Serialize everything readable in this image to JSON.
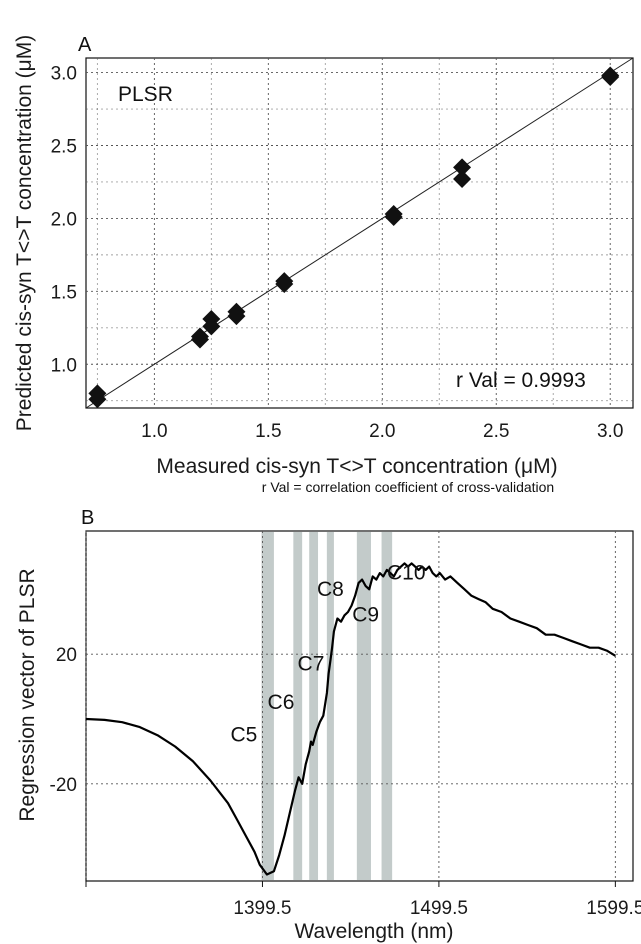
{
  "chart_data": [
    {
      "panel": "A",
      "type": "scatter",
      "annotation": "PLSR",
      "stat_text": "r Val = 0.9993",
      "xlabel": "Measured cis-syn T<>T concentration (μM)",
      "ylabel": "Predicted cis-syn T<>T concentration (μM)",
      "note": "r Val = correlation coefficient of cross-validation",
      "xlim": [
        0.7,
        3.1
      ],
      "ylim": [
        0.7,
        3.1
      ],
      "xticks": [
        "1.0",
        "1.5",
        "2.0",
        "2.5",
        "3.0"
      ],
      "yticks": [
        "1.0",
        "1.5",
        "2.0",
        "2.5",
        "3.0"
      ],
      "grid": true,
      "fit_line": [
        [
          0.7,
          0.7
        ],
        [
          3.1,
          3.1
        ]
      ],
      "points": [
        {
          "x": 0.75,
          "y": 0.76
        },
        {
          "x": 0.75,
          "y": 0.8
        },
        {
          "x": 1.2,
          "y": 1.17
        },
        {
          "x": 1.2,
          "y": 1.19
        },
        {
          "x": 1.25,
          "y": 1.26
        },
        {
          "x": 1.25,
          "y": 1.31
        },
        {
          "x": 1.36,
          "y": 1.33
        },
        {
          "x": 1.36,
          "y": 1.36
        },
        {
          "x": 1.57,
          "y": 1.55
        },
        {
          "x": 1.57,
          "y": 1.57
        },
        {
          "x": 2.05,
          "y": 2.01
        },
        {
          "x": 2.05,
          "y": 2.03
        },
        {
          "x": 2.35,
          "y": 2.27
        },
        {
          "x": 2.35,
          "y": 2.35
        },
        {
          "x": 3.0,
          "y": 2.97
        },
        {
          "x": 3.0,
          "y": 2.98
        }
      ]
    },
    {
      "panel": "B",
      "type": "line",
      "xlabel": "Wavelength (nm)",
      "ylabel": "Regression vector of PLSR",
      "xlim": [
        1299.5,
        1609.5
      ],
      "ylim": [
        -50,
        58
      ],
      "xticks": [
        "1399.5",
        "1499.5",
        "1599.5"
      ],
      "yticks": [
        "20",
        "-20"
      ],
      "grid": true,
      "bands": [
        {
          "x0": 1399,
          "x1": 1406
        },
        {
          "x0": 1417,
          "x1": 1422
        },
        {
          "x0": 1426,
          "x1": 1431
        },
        {
          "x0": 1436,
          "x1": 1440
        },
        {
          "x0": 1453,
          "x1": 1461
        },
        {
          "x0": 1467,
          "x1": 1473
        }
      ],
      "labels": [
        {
          "text": "C5",
          "x": 1389,
          "y": -7
        },
        {
          "text": "C6",
          "x": 1410,
          "y": 3
        },
        {
          "text": "C7",
          "x": 1427,
          "y": 15
        },
        {
          "text": "C8",
          "x": 1438,
          "y": 38
        },
        {
          "text": "C9",
          "x": 1458,
          "y": 30
        },
        {
          "text": "C10",
          "x": 1481,
          "y": 43
        }
      ],
      "series": [
        {
          "x": [
            1299.5,
            1310,
            1320,
            1330,
            1340,
            1350,
            1360,
            1370,
            1380,
            1385,
            1390,
            1395,
            1398,
            1402,
            1406,
            1409,
            1412,
            1415,
            1418,
            1420,
            1422,
            1424,
            1426,
            1427,
            1428,
            1430,
            1432,
            1434,
            1436,
            1437,
            1438,
            1439,
            1440,
            1442,
            1444,
            1446,
            1448,
            1450,
            1452,
            1454,
            1456,
            1458,
            1460,
            1462,
            1464,
            1466,
            1468,
            1470,
            1472,
            1474,
            1476,
            1478,
            1480,
            1482,
            1484,
            1486,
            1488,
            1490,
            1492,
            1494,
            1496,
            1498,
            1500,
            1503,
            1506,
            1510,
            1514,
            1518,
            1522,
            1526,
            1530,
            1535,
            1540,
            1545,
            1550,
            1555,
            1560,
            1565,
            1570,
            1575,
            1580,
            1585,
            1590,
            1595,
            1599.5
          ],
          "y": [
            0,
            -0.3,
            -1,
            -2.5,
            -5,
            -8.5,
            -13,
            -19,
            -26,
            -31,
            -36,
            -41,
            -45,
            -48,
            -47,
            -42,
            -36,
            -29,
            -22,
            -18,
            -20,
            -14,
            -10,
            -7,
            -8,
            -4,
            -1,
            1,
            8,
            14,
            18,
            22,
            27,
            31,
            30,
            32,
            33,
            35,
            38,
            42,
            43,
            41,
            40,
            44,
            43,
            45,
            44,
            46,
            45,
            44,
            46,
            47,
            48,
            47,
            48,
            47,
            46,
            47,
            46,
            47,
            45,
            44,
            45,
            43,
            44,
            42,
            40,
            38,
            37,
            36,
            34,
            33,
            31,
            30,
            29,
            28,
            26,
            26,
            25,
            24,
            23,
            22,
            22,
            21,
            19.5
          ]
        }
      ]
    }
  ]
}
